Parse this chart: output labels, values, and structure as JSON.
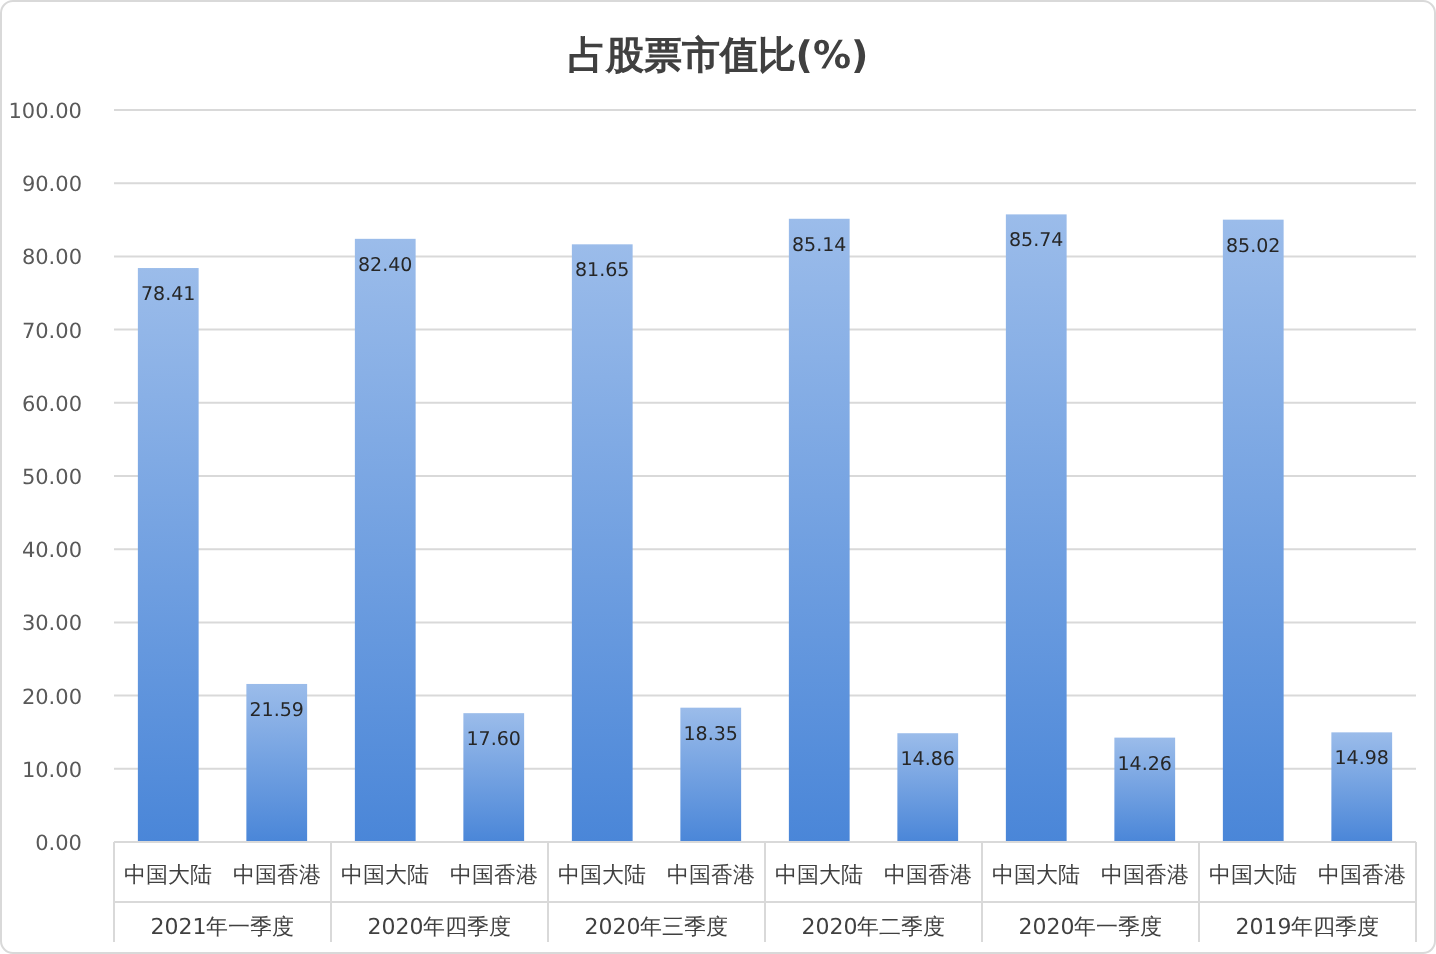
{
  "chart_data": {
    "type": "bar",
    "title": "占股票市值比(%)",
    "categories": [
      "中国大陆",
      "中国香港",
      "中国大陆",
      "中国香港",
      "中国大陆",
      "中国香港",
      "中国大陆",
      "中国香港",
      "中国大陆",
      "中国香港",
      "中国大陆",
      "中国香港"
    ],
    "values": [
      78.41,
      21.59,
      82.4,
      17.6,
      81.65,
      18.35,
      85.14,
      14.86,
      85.74,
      14.26,
      85.02,
      14.98
    ],
    "value_labels": [
      "78.41",
      "21.59",
      "82.40",
      "17.60",
      "81.65",
      "18.35",
      "85.14",
      "14.86",
      "85.74",
      "14.26",
      "85.02",
      "14.98"
    ],
    "color": "#4a86d8",
    "annotations": [
      "2021年一季度",
      "2020年四季度",
      "2020年三季度",
      "2020年二季度",
      "2020年一季度",
      "2019年四季度"
    ],
    "ylim": [
      0,
      100
    ],
    "yticks": [
      {
        "value": 0,
        "label": "0.00"
      },
      {
        "value": 10,
        "label": "10.00"
      },
      {
        "value": 20,
        "label": "20.00"
      },
      {
        "value": 30,
        "label": "30.00"
      },
      {
        "value": 40,
        "label": "40.00"
      },
      {
        "value": 50,
        "label": "50.00"
      },
      {
        "value": 60,
        "label": "60.00"
      },
      {
        "value": 70,
        "label": "70.00"
      },
      {
        "value": 80,
        "label": "80.00"
      },
      {
        "value": 90,
        "label": "90.00"
      },
      {
        "value": 100,
        "label": "100.00"
      }
    ],
    "grid": "y"
  }
}
